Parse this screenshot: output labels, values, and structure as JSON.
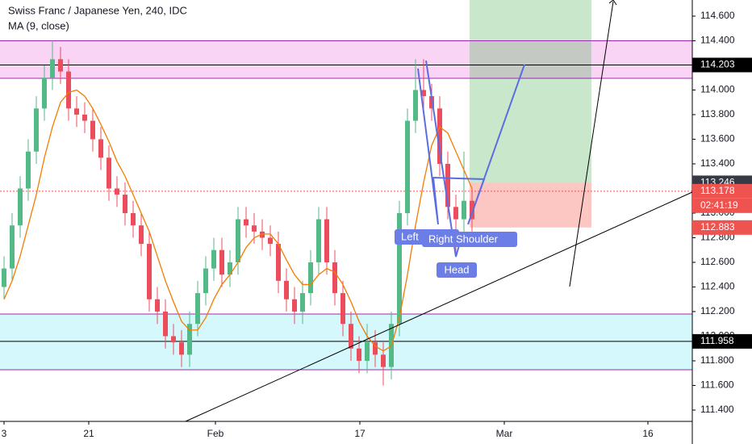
{
  "chart_data": {
    "type": "candlestick",
    "title": "Swiss Franc / Japanese Yen, 240, IDC",
    "indicator": "MA (9, close)",
    "x": [
      0,
      1,
      2,
      3,
      4,
      5,
      6,
      7,
      8,
      9,
      10,
      11,
      12,
      13,
      14,
      15,
      16,
      17,
      18,
      19,
      20,
      21,
      22,
      23,
      24,
      25,
      26,
      27,
      28,
      29,
      30,
      31,
      32,
      33,
      34,
      35,
      36,
      37,
      38,
      39,
      40,
      41,
      42,
      43,
      44,
      45,
      46,
      47,
      48,
      49,
      50,
      51,
      52,
      53,
      54,
      55,
      56,
      57,
      58
    ],
    "open": [
      112.4,
      112.55,
      112.9,
      113.2,
      113.5,
      113.85,
      114.1,
      114.25,
      114.15,
      113.85,
      113.8,
      113.75,
      113.6,
      113.45,
      113.2,
      113.15,
      113.0,
      112.9,
      112.75,
      112.3,
      112.2,
      112.0,
      111.95,
      111.85,
      112.1,
      112.35,
      112.55,
      112.7,
      112.5,
      112.6,
      112.95,
      112.9,
      112.85,
      112.8,
      112.75,
      112.45,
      112.3,
      112.2,
      112.35,
      112.6,
      112.95,
      112.6,
      112.35,
      112.1,
      111.9,
      111.8,
      111.95,
      111.85,
      111.75,
      112.1,
      113.0,
      113.75,
      114.0,
      113.95,
      113.85,
      113.4,
      113.05,
      112.95,
      113.1
    ],
    "high": [
      112.65,
      113.0,
      113.3,
      113.6,
      113.95,
      114.2,
      114.4,
      114.35,
      114.25,
      113.95,
      113.9,
      113.85,
      113.7,
      113.55,
      113.3,
      113.25,
      113.1,
      113.0,
      112.85,
      112.4,
      112.3,
      112.1,
      112.05,
      112.2,
      112.45,
      112.65,
      112.8,
      112.8,
      112.7,
      113.05,
      113.05,
      113.0,
      112.95,
      112.9,
      112.85,
      112.55,
      112.4,
      112.45,
      112.7,
      113.05,
      113.05,
      112.7,
      112.45,
      112.2,
      112.0,
      112.1,
      112.05,
      111.95,
      112.2,
      113.1,
      113.85,
      114.25,
      114.25,
      114.05,
      113.95,
      113.5,
      113.15,
      113.5,
      113.2
    ],
    "low": [
      112.3,
      112.45,
      112.8,
      113.1,
      113.4,
      113.75,
      114.0,
      114.05,
      113.75,
      113.7,
      113.65,
      113.5,
      113.35,
      113.1,
      113.05,
      112.9,
      112.8,
      112.65,
      112.2,
      112.1,
      111.9,
      111.85,
      111.75,
      111.75,
      112.0,
      112.25,
      112.45,
      112.4,
      112.4,
      112.5,
      112.8,
      112.75,
      112.7,
      112.65,
      112.35,
      112.2,
      112.1,
      112.1,
      112.25,
      112.5,
      112.5,
      112.25,
      112.0,
      111.8,
      111.7,
      111.7,
      111.75,
      111.6,
      111.65,
      112.0,
      112.9,
      113.65,
      113.85,
      113.75,
      113.3,
      112.95,
      112.65,
      112.85,
      112.85
    ],
    "close": [
      112.55,
      112.9,
      113.2,
      113.5,
      113.85,
      114.1,
      114.25,
      114.15,
      113.85,
      113.8,
      113.75,
      113.6,
      113.45,
      113.2,
      113.15,
      113.0,
      112.9,
      112.75,
      112.3,
      112.2,
      112.0,
      111.95,
      111.85,
      112.1,
      112.35,
      112.55,
      112.7,
      112.5,
      112.6,
      112.95,
      112.9,
      112.85,
      112.8,
      112.75,
      112.45,
      112.3,
      112.2,
      112.35,
      112.6,
      112.95,
      112.6,
      112.35,
      112.1,
      111.9,
      111.8,
      111.95,
      111.85,
      111.75,
      112.1,
      113.0,
      113.75,
      114.0,
      113.95,
      113.85,
      113.4,
      113.05,
      112.95,
      113.1,
      112.95
    ],
    "up_color": "#53b987",
    "down_color": "#eb4d5c",
    "ma": {
      "color": "#f57c00",
      "values": [
        112.3,
        112.45,
        112.65,
        112.9,
        113.15,
        113.45,
        113.7,
        113.9,
        113.98,
        114.0,
        113.95,
        113.85,
        113.72,
        113.58,
        113.42,
        113.3,
        113.15,
        113.0,
        112.85,
        112.65,
        112.45,
        112.28,
        112.12,
        112.05,
        112.05,
        112.15,
        112.3,
        112.42,
        112.5,
        112.6,
        112.72,
        112.8,
        112.83,
        112.83,
        112.75,
        112.62,
        112.5,
        112.42,
        112.42,
        112.5,
        112.55,
        112.52,
        112.42,
        112.28,
        112.12,
        112.0,
        111.92,
        111.88,
        111.92,
        112.15,
        112.5,
        112.9,
        113.25,
        113.55,
        113.7,
        113.65,
        113.5,
        113.35,
        113.2
      ]
    },
    "xlim": [
      -0.5,
      85.3
    ],
    "xticks": [
      {
        "value": 0,
        "label": "3"
      },
      {
        "value": 10.5,
        "label": "21"
      },
      {
        "value": 26.2,
        "label": "Feb"
      },
      {
        "value": 44.1,
        "label": "17"
      },
      {
        "value": 62,
        "label": "Mar"
      },
      {
        "value": 79.8,
        "label": "16"
      }
    ],
    "ylim": [
      111.308,
      114.731
    ],
    "yticks": [
      {
        "value": 111.4,
        "label": "111.400"
      },
      {
        "value": 111.6,
        "label": "111.600"
      },
      {
        "value": 111.8,
        "label": "111.800"
      },
      {
        "value": 112.0,
        "label": "112.000"
      },
      {
        "value": 112.2,
        "label": "112.200"
      },
      {
        "value": 112.4,
        "label": "112.400"
      },
      {
        "value": 112.6,
        "label": "112.600"
      },
      {
        "value": 112.8,
        "label": "112.800"
      },
      {
        "value": 113.0,
        "label": "113.000"
      },
      {
        "value": 113.2,
        "label": "113.200"
      },
      {
        "value": 113.4,
        "label": "113.400"
      },
      {
        "value": 113.6,
        "label": "113.600"
      },
      {
        "value": 113.8,
        "label": "113.800"
      },
      {
        "value": 114.0,
        "label": "114.000"
      },
      {
        "value": 114.2,
        "label": "114.200"
      },
      {
        "value": 114.4,
        "label": "114.400"
      },
      {
        "value": 114.6,
        "label": "114.600"
      }
    ],
    "zones": [
      {
        "from": 114.095,
        "to": 114.4,
        "color": "#f9c9f3"
      },
      {
        "from": 111.728,
        "to": 112.18,
        "color": "#c9f6fa"
      }
    ],
    "levels": [
      {
        "value": 114.4,
        "color": "#9c27b0"
      },
      {
        "value": 114.203,
        "color": "#000000"
      },
      {
        "value": 114.095,
        "color": "#9c27b0"
      },
      {
        "value": 112.18,
        "color": "#9c27b0"
      },
      {
        "value": 111.958,
        "color": "#000000"
      },
      {
        "value": 111.728,
        "color": "#9c27b0"
      }
    ],
    "current_price": {
      "value": 113.178,
      "color": "#ef5350"
    },
    "position": {
      "entry": 113.246,
      "stop": 112.883,
      "x_from": 57.7,
      "x_to": 72.8
    },
    "price_labels": [
      {
        "value": 114.203,
        "label": "114.203",
        "color": "#000000"
      },
      {
        "value": 113.246,
        "label": "113.246",
        "color": "#363a45"
      },
      {
        "value": 113.178,
        "label": "113.178",
        "color": "#ef5350"
      },
      {
        "value": 112.883,
        "label": "112.883",
        "color": "#ef5350"
      },
      {
        "value": 111.958,
        "label": "111.958",
        "color": "#000000"
      }
    ],
    "countdown": "02:41:19",
    "annotations": [
      "Left Shoulder",
      "Right Shoulder",
      "Head"
    ]
  }
}
